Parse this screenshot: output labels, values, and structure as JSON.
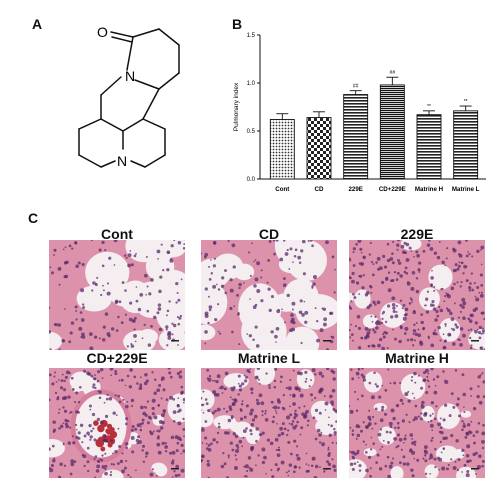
{
  "panels": {
    "a": "A",
    "b": "B",
    "c": "C"
  },
  "structure": {
    "oxygen": "O",
    "nitrogen1": "N",
    "nitrogen2": "N"
  },
  "chart_data": {
    "type": "bar",
    "title": "",
    "xlabel": "",
    "ylabel": "Pulmonary index",
    "ylim": [
      0.0,
      1.5
    ],
    "yticks": [
      "0.0",
      "0.5",
      "1.0",
      "1.5"
    ],
    "categories": [
      "Cont",
      "CD",
      "229E",
      "CD+229E",
      "Matrine H",
      "Matrine L"
    ],
    "values": [
      0.62,
      0.64,
      0.88,
      0.98,
      0.67,
      0.71
    ],
    "errors": [
      0.06,
      0.06,
      0.04,
      0.08,
      0.04,
      0.05
    ],
    "annotations": [
      "",
      "",
      "##",
      "##",
      "**",
      "**"
    ],
    "grid": false,
    "fills": [
      "dots",
      "checker",
      "hlines",
      "hlines-dense",
      "hlines",
      "hlines"
    ]
  },
  "histology": {
    "titles": [
      "Cont",
      "CD",
      "229E",
      "CD+229E",
      "Matrine L",
      "Matrine H"
    ],
    "tissue_colors": {
      "background": "#f4eef1",
      "tissue": "#d67f9c",
      "nuclei": "#5a2a6a",
      "blood": "#b8313a"
    }
  }
}
